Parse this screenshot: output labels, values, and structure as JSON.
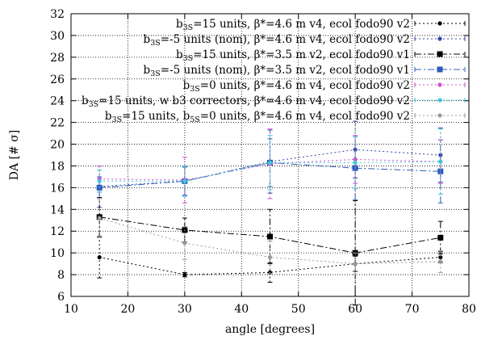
{
  "chart_data": {
    "type": "line",
    "xlabel": "angle [degrees]",
    "ylabel": "DA [# σ]",
    "xlim": [
      10,
      80
    ],
    "ylim": [
      6,
      32
    ],
    "x_ticks": [
      "10",
      "20",
      "30",
      "40",
      "50",
      "60",
      "70",
      "80"
    ],
    "y_ticks": [
      "6",
      "8",
      "10",
      "12",
      "14",
      "16",
      "18",
      "20",
      "22",
      "24",
      "26",
      "28",
      "30",
      "32"
    ],
    "grid": "dotted horizontal and vertical",
    "legend_position": "top-right",
    "x": [
      15,
      30,
      45,
      60,
      75
    ],
    "series": [
      {
        "label_parts": [
          [
            "b",
            "3S",
            "=15 units, β*=4.6 m v4, ecol fodo90 v2"
          ]
        ],
        "color": "#000000",
        "dash": "2 3",
        "marker": "dot",
        "values": [
          9.6,
          8.0,
          8.2,
          9.0,
          9.6
        ],
        "err": [
          1.9,
          0.2,
          0.9,
          0.7,
          0.5
        ]
      },
      {
        "label_parts": [
          [
            "b",
            "3S",
            "=-5 units (nom), β*=4.6 m v4, ecol fodo90 v2"
          ]
        ],
        "color": "#3348a8",
        "dash": "2 3",
        "marker": "dot",
        "values": [
          16.1,
          16.6,
          18.4,
          19.5,
          19.0
        ],
        "err": [
          1.9,
          1.3,
          2.9,
          2.6,
          2.5
        ]
      },
      {
        "label_parts": [
          [
            "b",
            "3S",
            "=15 units, β*=3.5 m v2, ecol fodo90 v1"
          ]
        ],
        "color": "#000000",
        "dash": "8 3 2 3",
        "marker": "square",
        "values": [
          13.3,
          12.1,
          11.5,
          10.0,
          11.4
        ],
        "err": [
          1.8,
          1.1,
          2.5,
          4.8,
          1.5
        ]
      },
      {
        "label_parts": [
          [
            "b",
            "3S",
            "=-5 units (nom), β*=3.5 m v2, ecol fodo90 v1"
          ]
        ],
        "color": "#2a5cb8",
        "dash": "8 3 2 3",
        "marker": "square",
        "values": [
          16.0,
          16.6,
          18.3,
          17.8,
          17.5
        ],
        "err": [
          1.0,
          1.3,
          2.2,
          2.9,
          2.9
        ]
      },
      {
        "label_parts": [
          [
            "b",
            "3S",
            "=0 units, β*=4.6 m v4, ecol fodo90 v2"
          ]
        ],
        "color": "#d050d0",
        "dash": "2 3",
        "marker": "dot",
        "values": [
          16.8,
          16.7,
          18.2,
          18.6,
          18.4
        ],
        "err": [
          1.2,
          2.1,
          3.2,
          2.2,
          2.0
        ]
      },
      {
        "label_parts": [
          [
            "b",
            "3S",
            "=15 units, w b3 correctors, β*=4.6 m v4, ecol fodo90 v2"
          ]
        ],
        "color": "#40c8d8",
        "dash": "2 3",
        "marker": "dot",
        "values": [
          16.6,
          16.6,
          18.3,
          18.3,
          18.4
        ],
        "err": [
          1.0,
          1.4,
          2.5,
          2.4,
          3.0
        ]
      },
      {
        "label_parts": [
          [
            "b",
            "3S",
            "=15 units, b"
          ],
          [
            "",
            "5S",
            "=0 units, β*=4.6 m v4, ecol fodo90 v2"
          ]
        ],
        "color": "#999999",
        "dash": "2 3",
        "marker": "dot",
        "values": [
          13.2,
          10.9,
          9.6,
          9.0,
          9.2
        ],
        "err": [
          1.8,
          1.5,
          1.5,
          1.0,
          1.0
        ]
      }
    ]
  }
}
